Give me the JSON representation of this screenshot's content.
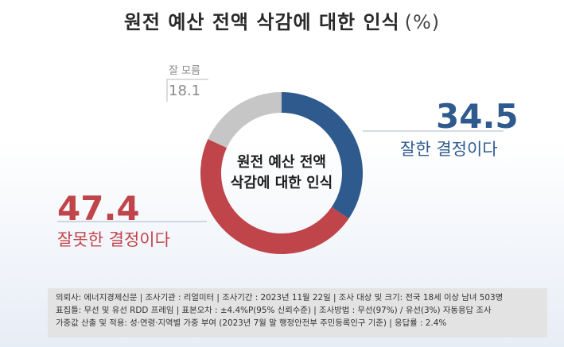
{
  "title": "원전 예산 전액 삭감에 대한 인식",
  "unit": "(%)",
  "center_label_lines": [
    "원전 예산 전액",
    "삭감에 대한 인식"
  ],
  "chart_data": {
    "type": "pie",
    "slices": [
      {
        "label": "잘한 결정이다",
        "value": 34.5,
        "value_text": "34.5",
        "color": "#2f5a8e"
      },
      {
        "label": "잘못한 결정이다",
        "value": 47.4,
        "value_text": "47.4",
        "color": "#c0454a"
      },
      {
        "label": "잘 모름",
        "value": 18.1,
        "value_text": "18.1",
        "color": "#c6c6c6"
      }
    ]
  },
  "footer_lines": [
    "의뢰사: 에너지경제신문 | 조사기관 : 리얼미터  | 조사기간 : 2023년 11월 22일 | 조사 대상 및 크기: 전국 18세 이상 남녀 503명",
    "표집틀: 무선 및 유선 RDD 프레임 | 표본오차 : ±4.4%P(95% 신뢰수준) | 조사방법 : 무선(97%) / 유선(3%) 자동응답 조사",
    "가중값 산출 및 적용: 성·연령·지역별 가중 부여 (2023년 7월 말 행정안전부 주민등록인구 기준) | 응답률 : 2.4%"
  ]
}
